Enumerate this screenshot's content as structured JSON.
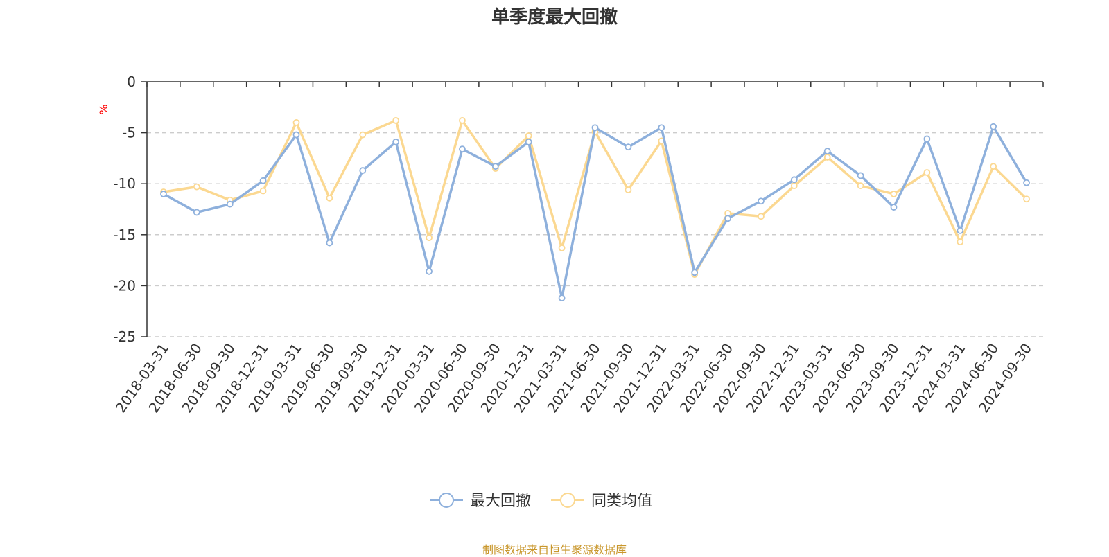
{
  "footer": "制图数据来自恒生聚源数据库",
  "chart_data": {
    "type": "line",
    "title": "单季度最大回撤",
    "ylabel": "%",
    "xlabel": "",
    "ylim": [
      -25,
      0
    ],
    "yticks": [
      0,
      -5,
      -10,
      -15,
      -20,
      -25
    ],
    "grid": true,
    "legend": "bottom-center",
    "categories": [
      "2018-03-31",
      "2018-06-30",
      "2018-09-30",
      "2018-12-31",
      "2019-03-31",
      "2019-06-30",
      "2019-09-30",
      "2019-12-31",
      "2020-03-31",
      "2020-06-30",
      "2020-09-30",
      "2020-12-31",
      "2021-03-31",
      "2021-06-30",
      "2021-09-30",
      "2021-12-31",
      "2022-03-31",
      "2022-06-30",
      "2022-09-30",
      "2022-12-31",
      "2023-03-31",
      "2023-06-30",
      "2023-09-30",
      "2023-12-31",
      "2024-03-31",
      "2024-06-30",
      "2024-09-30"
    ],
    "series": [
      {
        "name": "最大回撤",
        "color": "#8eb0dc",
        "values": [
          -11.0,
          -12.8,
          -12.0,
          -9.7,
          -5.2,
          -15.8,
          -8.7,
          -5.9,
          -18.6,
          -6.6,
          -8.3,
          -5.9,
          -21.2,
          -4.5,
          -6.4,
          -4.5,
          -18.7,
          -13.4,
          -11.7,
          -9.6,
          -6.8,
          -9.2,
          -12.3,
          -5.6,
          -14.6,
          -4.4,
          -9.9
        ]
      },
      {
        "name": "同类均值",
        "color": "#fbd891",
        "values": [
          -10.8,
          -10.3,
          -11.6,
          -10.7,
          -4.0,
          -11.4,
          -5.2,
          -3.8,
          -15.3,
          -3.8,
          -8.5,
          -5.3,
          -16.3,
          -4.9,
          -10.6,
          -5.8,
          -18.9,
          -12.9,
          -13.2,
          -10.2,
          -7.4,
          -10.2,
          -11.0,
          -8.9,
          -15.7,
          -8.3,
          -11.5
        ]
      }
    ]
  }
}
